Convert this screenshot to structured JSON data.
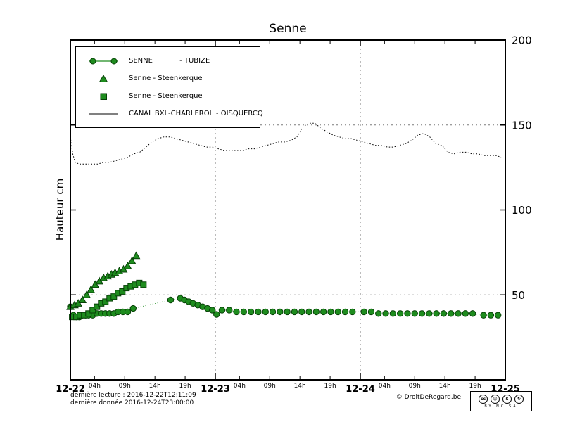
{
  "title": "Senne",
  "colors": {
    "green": "#1e8c1e",
    "green_edge": "#063f06",
    "black": "#000000"
  },
  "legend": {
    "items": [
      {
        "label": "SENNE            - TUBIZE",
        "marker": "circle-line"
      },
      {
        "label": "Senne - Steenkerque",
        "marker": "triangle"
      },
      {
        "label": "Senne - Steenkerque",
        "marker": "square"
      },
      {
        "label": "CANAL BXL-CHARLEROI  - OISQUERCQ",
        "marker": "line"
      }
    ]
  },
  "footer": {
    "line1": "dernière lecture : 2016-12-22T12:11:09",
    "line2": "dernière donnée  2016-12-24T23:00:00",
    "copyright": "© DroitDeRegard.be",
    "cc": {
      "icons": [
        "cc",
        "☺",
        "$",
        "↻"
      ],
      "caption": "BY NC SA"
    }
  },
  "chart_data": {
    "type": "line",
    "title": "Senne",
    "ylabel": "Hauteur cm",
    "ylim": [
      0,
      200
    ],
    "yticks": [
      {
        "v": 50,
        "label": "50"
      },
      {
        "v": 100,
        "label": "100"
      },
      {
        "v": 150,
        "label": "150"
      },
      {
        "v": 200,
        "label": "200"
      }
    ],
    "x_axis": {
      "unit": "hours from 2016-12-22 00:00",
      "range": [
        0,
        72
      ],
      "day_ticks": [
        {
          "t": 0,
          "label": "12-22"
        },
        {
          "t": 24,
          "label": "12-23"
        },
        {
          "t": 48,
          "label": "12-24"
        },
        {
          "t": 72,
          "label": "12-25"
        }
      ],
      "hour_ticks": [
        {
          "t": 4,
          "label": "04h"
        },
        {
          "t": 9,
          "label": "09h"
        },
        {
          "t": 14,
          "label": "14h"
        },
        {
          "t": 19,
          "label": "19h"
        },
        {
          "t": 28,
          "label": "04h"
        },
        {
          "t": 33,
          "label": "09h"
        },
        {
          "t": 38,
          "label": "14h"
        },
        {
          "t": 43,
          "label": "19h"
        },
        {
          "t": 52,
          "label": "04h"
        },
        {
          "t": 57,
          "label": "09h"
        },
        {
          "t": 62,
          "label": "14h"
        },
        {
          "t": 67,
          "label": "19h"
        }
      ]
    },
    "grid": {
      "x_hours": [
        24,
        48
      ],
      "y_values": [
        50,
        100,
        150
      ]
    },
    "series": [
      {
        "id": "canal-oisquercq",
        "name": "CANAL BXL-CHARLEROI - OISQUERCQ",
        "style": "dotline",
        "color": "#000000",
        "points": [
          [
            0,
            143
          ],
          [
            0.4,
            133
          ],
          [
            0.8,
            128
          ],
          [
            1.5,
            127
          ],
          [
            2.5,
            127
          ],
          [
            3.5,
            127
          ],
          [
            4.5,
            127
          ],
          [
            5.5,
            128
          ],
          [
            6.5,
            128
          ],
          [
            7.5,
            129
          ],
          [
            8.5,
            130
          ],
          [
            9.5,
            131
          ],
          [
            10.5,
            133
          ],
          [
            11.5,
            134
          ],
          [
            12.5,
            137
          ],
          [
            13.5,
            140
          ],
          [
            14.5,
            142
          ],
          [
            15.5,
            143
          ],
          [
            16.5,
            143
          ],
          [
            17.5,
            142
          ],
          [
            18.5,
            141
          ],
          [
            19.5,
            140
          ],
          [
            20.5,
            139
          ],
          [
            21.5,
            138
          ],
          [
            22.5,
            137
          ],
          [
            23.5,
            137
          ],
          [
            24.5,
            136
          ],
          [
            25.5,
            135
          ],
          [
            26.5,
            135
          ],
          [
            27.5,
            135
          ],
          [
            28.5,
            135
          ],
          [
            29.5,
            136
          ],
          [
            30.5,
            136
          ],
          [
            31.5,
            137
          ],
          [
            32.5,
            138
          ],
          [
            33.5,
            139
          ],
          [
            34.5,
            140
          ],
          [
            35.5,
            140
          ],
          [
            36.5,
            141
          ],
          [
            37.5,
            143
          ],
          [
            38.5,
            149
          ],
          [
            39.5,
            151
          ],
          [
            40.5,
            151
          ],
          [
            41.5,
            148
          ],
          [
            42.5,
            146
          ],
          [
            43.5,
            144
          ],
          [
            44.5,
            143
          ],
          [
            45.5,
            142
          ],
          [
            46.5,
            142
          ],
          [
            47.5,
            141
          ],
          [
            48.5,
            140
          ],
          [
            49.5,
            139
          ],
          [
            50.5,
            138
          ],
          [
            51.5,
            138
          ],
          [
            52.5,
            137
          ],
          [
            53.5,
            137
          ],
          [
            54.5,
            138
          ],
          [
            55.5,
            139
          ],
          [
            56.5,
            141
          ],
          [
            57.5,
            144
          ],
          [
            58.5,
            145
          ],
          [
            59.5,
            143
          ],
          [
            60.5,
            139
          ],
          [
            61.5,
            138
          ],
          [
            62.5,
            134
          ],
          [
            63.5,
            133
          ],
          [
            64.5,
            134
          ],
          [
            65.5,
            134
          ],
          [
            66.5,
            133
          ],
          [
            67.5,
            133
          ],
          [
            68.5,
            132
          ],
          [
            69.5,
            132
          ],
          [
            70.5,
            132
          ],
          [
            71.3,
            131
          ]
        ]
      },
      {
        "id": "senne-tubize",
        "name": "SENNE - TUBIZE",
        "style": "circle",
        "color": "#1e8c1e",
        "edge": "#063f06",
        "points": [
          [
            0,
            43
          ],
          [
            0.5,
            38
          ],
          [
            1,
            37
          ],
          [
            1.5,
            37
          ],
          [
            2,
            38
          ],
          [
            2.5,
            38
          ],
          [
            3,
            38
          ],
          [
            3.7,
            38
          ],
          [
            4.4,
            39
          ],
          [
            5.1,
            39
          ],
          [
            5.8,
            39
          ],
          [
            6.5,
            39
          ],
          [
            7.2,
            39
          ],
          [
            7.9,
            40
          ],
          [
            8.7,
            40
          ],
          [
            9.5,
            40
          ],
          [
            10.4,
            42
          ],
          [
            16.6,
            47
          ],
          [
            18.2,
            48
          ],
          [
            18.9,
            47
          ],
          [
            19.6,
            46
          ],
          [
            20.3,
            45
          ],
          [
            21.1,
            44
          ],
          [
            21.9,
            43
          ],
          [
            22.7,
            42
          ],
          [
            23.5,
            41
          ],
          [
            24.2,
            38.5
          ],
          [
            25.1,
            41
          ],
          [
            26.3,
            41
          ],
          [
            27.5,
            40
          ],
          [
            28.7,
            40
          ],
          [
            29.9,
            40
          ],
          [
            31.1,
            40
          ],
          [
            32.3,
            40
          ],
          [
            33.5,
            40
          ],
          [
            34.7,
            40
          ],
          [
            35.9,
            40
          ],
          [
            37.1,
            40
          ],
          [
            38.3,
            40
          ],
          [
            39.5,
            40
          ],
          [
            40.7,
            40
          ],
          [
            41.9,
            40
          ],
          [
            43.1,
            40
          ],
          [
            44.3,
            40
          ],
          [
            45.5,
            40
          ],
          [
            46.7,
            40
          ],
          [
            48.6,
            40
          ],
          [
            49.8,
            40
          ],
          [
            51,
            39
          ],
          [
            52.2,
            39
          ],
          [
            53.4,
            39
          ],
          [
            54.6,
            39
          ],
          [
            55.8,
            39
          ],
          [
            57,
            39
          ],
          [
            58.2,
            39
          ],
          [
            59.4,
            39
          ],
          [
            60.6,
            39
          ],
          [
            61.8,
            39
          ],
          [
            63,
            39
          ],
          [
            64.2,
            39
          ],
          [
            65.4,
            39
          ],
          [
            66.6,
            39
          ],
          [
            68.4,
            38
          ],
          [
            69.6,
            38
          ],
          [
            70.8,
            38
          ]
        ]
      },
      {
        "id": "senne-steenkerque-triangles",
        "name": "Senne - Steenkerque",
        "style": "triangle",
        "color": "#1e8c1e",
        "edge": "#063f06",
        "points": [
          [
            0,
            43
          ],
          [
            0.7,
            44
          ],
          [
            1.3,
            45
          ],
          [
            2,
            47
          ],
          [
            2.7,
            50
          ],
          [
            3.4,
            53
          ],
          [
            4.1,
            56
          ],
          [
            4.8,
            58
          ],
          [
            5.5,
            60
          ],
          [
            6.2,
            61
          ],
          [
            6.8,
            62
          ],
          [
            7.4,
            63
          ],
          [
            8.1,
            64
          ],
          [
            8.8,
            65
          ],
          [
            9.5,
            67
          ],
          [
            10.2,
            70
          ],
          [
            10.9,
            73
          ]
        ]
      },
      {
        "id": "senne-steenkerque-squares",
        "name": "Senne - Steenkerque",
        "style": "square",
        "color": "#1e8c1e",
        "edge": "#063f06",
        "points": [
          [
            0.3,
            37
          ],
          [
            1,
            37
          ],
          [
            1.6,
            38
          ],
          [
            2.3,
            38
          ],
          [
            3,
            39
          ],
          [
            3.7,
            41
          ],
          [
            4.4,
            43
          ],
          [
            5.1,
            45
          ],
          [
            5.8,
            46
          ],
          [
            6.5,
            48
          ],
          [
            7.2,
            49
          ],
          [
            7.9,
            51
          ],
          [
            8.6,
            52
          ],
          [
            9.3,
            54
          ],
          [
            10,
            55
          ],
          [
            10.7,
            56
          ],
          [
            11.4,
            57
          ],
          [
            12.1,
            56
          ]
        ]
      }
    ]
  }
}
